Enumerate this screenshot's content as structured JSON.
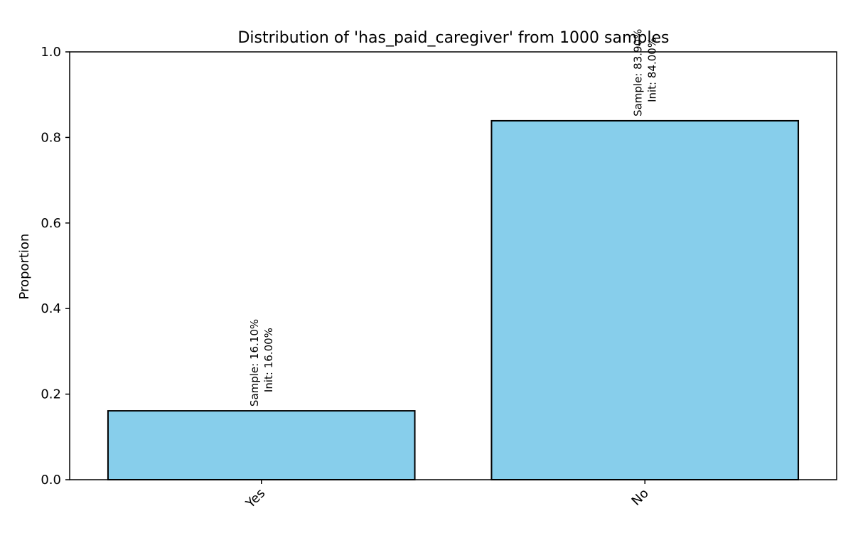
{
  "chart_data": {
    "type": "bar",
    "title": "Distribution of 'has_paid_caregiver' from 1000 samples",
    "xlabel": "",
    "ylabel": "Proportion",
    "categories": [
      "Yes",
      "No"
    ],
    "values": [
      0.161,
      0.839
    ],
    "annotations": [
      {
        "line1": "Sample: 16.10%",
        "line2": "Init: 16.00%"
      },
      {
        "line1": "Sample: 83.90%",
        "line2": "Init: 84.00%"
      }
    ],
    "ylim": [
      0,
      1.0
    ],
    "yticks": [
      "0.0",
      "0.2",
      "0.4",
      "0.6",
      "0.8",
      "1.0"
    ],
    "ytick_values": [
      0,
      0.2,
      0.4,
      0.6,
      0.8,
      1.0
    ],
    "grid": false,
    "colors": {
      "bar_fill": "#87ceeb",
      "bar_edge": "#000000"
    }
  }
}
